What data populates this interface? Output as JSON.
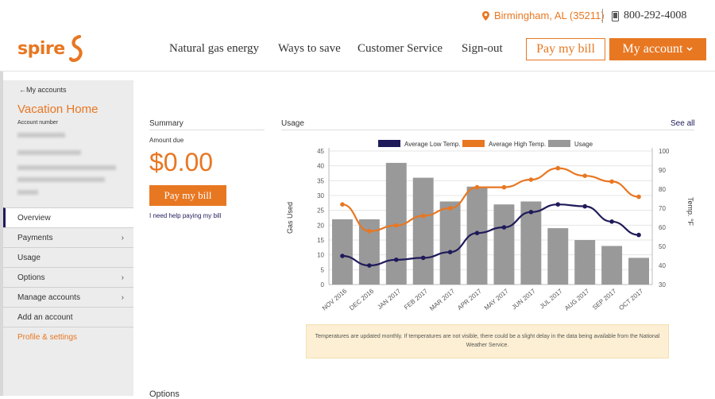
{
  "header": {
    "location": "Birmingham, AL (35211)",
    "phone": "800-292-4008",
    "logo_text": "spire",
    "nav": [
      "Natural gas energy",
      "Ways to save",
      "Customer Service",
      "Sign-out"
    ],
    "pay_bill": "Pay my bill",
    "my_account": "My account",
    "brand_color": "#e87722"
  },
  "sidebar": {
    "back": "My accounts",
    "account_name": "Vacation Home",
    "account_number_label": "Account number",
    "menu": [
      {
        "label": "Overview",
        "chevron": false
      },
      {
        "label": "Payments",
        "chevron": true
      },
      {
        "label": "Usage",
        "chevron": false
      },
      {
        "label": "Options",
        "chevron": true
      },
      {
        "label": "Manage accounts",
        "chevron": true
      },
      {
        "label": "Add an account",
        "chevron": false
      },
      {
        "label": "Profile & settings",
        "chevron": false
      }
    ]
  },
  "summary": {
    "heading": "Summary",
    "amount_due_label": "Amount due",
    "amount": "$0.00",
    "pay_button": "Pay my bill",
    "help_link": "I need help paying my bill"
  },
  "usage": {
    "heading": "Usage",
    "see_all": "See all",
    "note": "Temperatures are updated monthly. If temperatures are not visible, there could be a slight delay in the data being available from the National Weather Service."
  },
  "options": {
    "heading": "Options"
  },
  "chart_data": {
    "type": "bar",
    "categories": [
      "NOV 2016",
      "DEC 2016",
      "JAN 2017",
      "FEB 2017",
      "MAR 2017",
      "APR 2017",
      "MAY 2017",
      "JUN 2017",
      "JUL 2017",
      "AUG 2017",
      "SEP 2017",
      "OCT 2017"
    ],
    "ylabel": "Gas Used",
    "y2label": "Temp. °F",
    "ylim": [
      0,
      45
    ],
    "y2lim": [
      30,
      100
    ],
    "yticks": [
      0,
      5,
      10,
      15,
      20,
      25,
      30,
      35,
      40,
      45
    ],
    "y2ticks": [
      30,
      40,
      50,
      60,
      70,
      80,
      90,
      100
    ],
    "legend": [
      "Average Low Temp.",
      "Average High Temp.",
      "Usage"
    ],
    "legend_position": "top",
    "series": [
      {
        "name": "Usage",
        "type": "bar",
        "color": "#999999",
        "values": [
          22,
          22,
          41,
          36,
          28,
          33,
          27,
          28,
          19,
          15,
          13,
          9
        ]
      },
      {
        "name": "Average Low Temp.",
        "type": "line",
        "axis": "right",
        "color": "#1f1b5a",
        "values": [
          45,
          40,
          43,
          44,
          47,
          57,
          60,
          68,
          72,
          71,
          63,
          56
        ]
      },
      {
        "name": "Average High Temp.",
        "type": "line",
        "axis": "right",
        "color": "#e87722",
        "values": [
          72,
          58,
          61,
          66,
          70,
          81,
          81,
          85,
          91,
          87,
          84,
          76
        ]
      }
    ]
  }
}
